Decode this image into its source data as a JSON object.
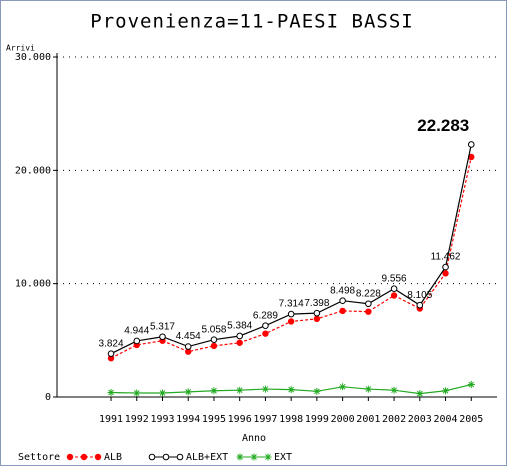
{
  "chart_data": {
    "type": "line",
    "title": "Provenienza=11-PAESI BASSI",
    "y_label": "Arrivi",
    "x_label": "Anno",
    "legend_title": "Settore",
    "x": [
      1991,
      1992,
      1993,
      1994,
      1995,
      1996,
      1997,
      1998,
      1999,
      2000,
      2001,
      2002,
      2003,
      2004,
      2005
    ],
    "xlim": [
      1988.9,
      2006
    ],
    "xticks": [
      1991,
      1992,
      1993,
      1994,
      1995,
      1996,
      1997,
      1998,
      1999,
      2000,
      2001,
      2002,
      2003,
      2004,
      2005
    ],
    "ylim": [
      0,
      30000
    ],
    "yticks": [
      {
        "value": 0,
        "label": "0"
      },
      {
        "value": 10000,
        "label": "10.000"
      },
      {
        "value": 20000,
        "label": "20.000"
      },
      {
        "value": 30000,
        "label": "30.000"
      }
    ],
    "grid": true,
    "series": [
      {
        "name": "ALB",
        "color": "#ff0000",
        "marker": "dot",
        "dashed": true,
        "values": [
          3424,
          4594,
          4967,
          4004,
          4508,
          4784,
          5589,
          6664,
          6898,
          7598,
          7528,
          8956,
          7805,
          10912,
          21183
        ]
      },
      {
        "name": "ALB+EXT",
        "color": "#000000",
        "marker": "circle",
        "dashed": false,
        "values": [
          3824,
          4944,
          5317,
          4454,
          5058,
          5384,
          6289,
          7314,
          7398,
          8498,
          8228,
          9556,
          8105,
          11462,
          22283
        ],
        "value_labels": [
          "3.824",
          "4.944",
          "5.317",
          "4.454",
          "5.058",
          "5.384",
          "6.289",
          "7.314",
          "7.398",
          "8.498",
          "8.228",
          "9.556",
          "8.105",
          "11.462",
          "22.283"
        ]
      },
      {
        "name": "EXT",
        "color": "#22aa22",
        "marker": "star",
        "dashed": false,
        "values": [
          400,
          350,
          350,
          450,
          550,
          600,
          700,
          650,
          500,
          900,
          700,
          600,
          300,
          550,
          1100
        ]
      }
    ]
  }
}
